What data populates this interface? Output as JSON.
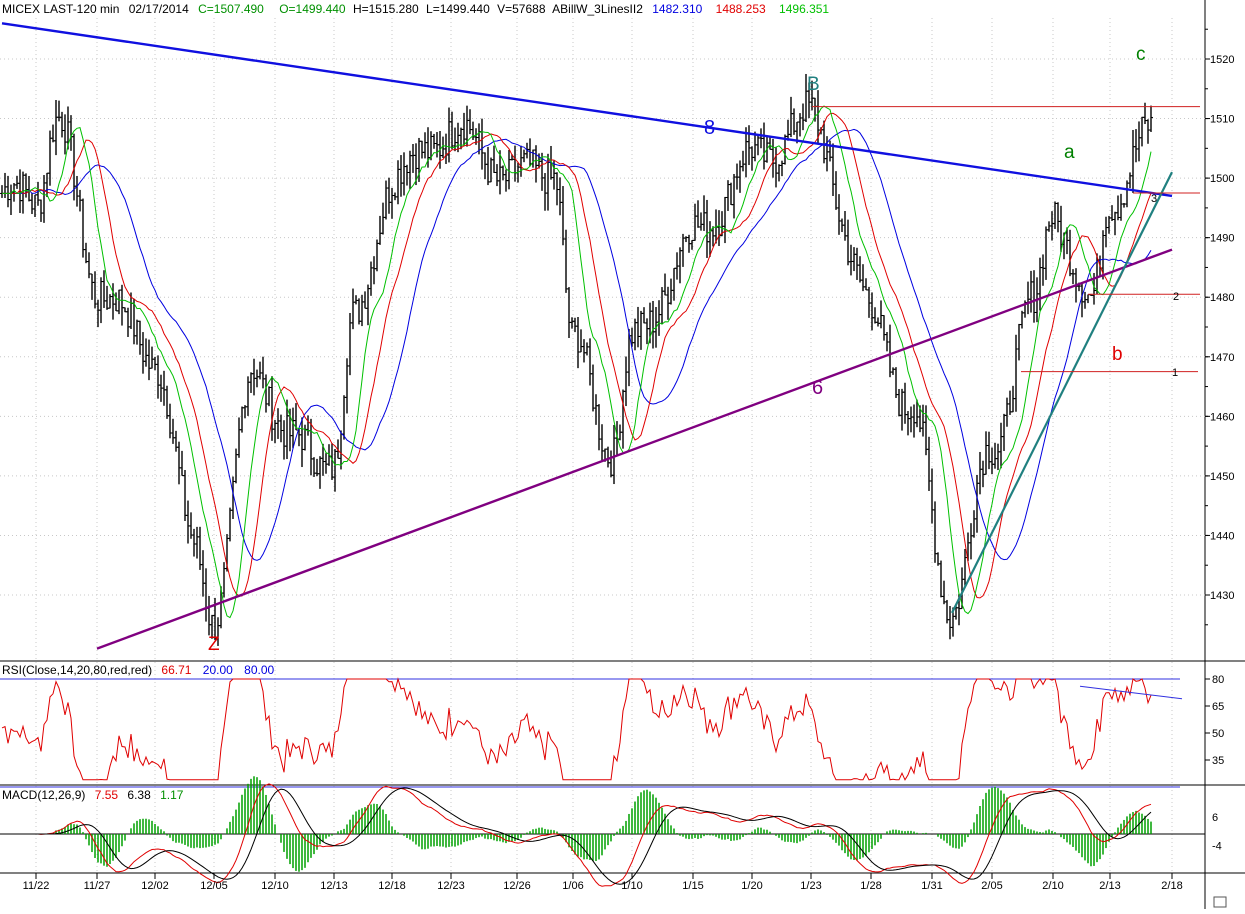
{
  "header": {
    "symbol": "MICEX LAST-120 min",
    "date": "02/17/2014",
    "close": "C=1507.490",
    "open": "O=1499.440",
    "high": "H=1515.280",
    "low": "L=1499.440",
    "volume": "V=57688",
    "indicator": "ABillW_3LinesII2",
    "line1": "1482.310",
    "line2": "1488.253",
    "line3": "1496.351"
  },
  "rsi": {
    "label": "RSI(Close,14,20,80,red,red)",
    "value": "66.71",
    "low": "20.00",
    "high": "80.00",
    "ticks": [
      "80",
      "65",
      "50",
      "35"
    ]
  },
  "macd": {
    "label": "MACD(12,26,9)",
    "macd": "7.55",
    "signal": "6.38",
    "hist": "1.17",
    "ticks": [
      "6",
      "-4"
    ]
  },
  "colors": {
    "up_trend": "#1010e0",
    "support": "#800080",
    "channel": "#208080",
    "rsi_line": "#e00000",
    "ma_fast": "#00c000",
    "ma_mid": "#e00000",
    "ma_slow": "#0000e0",
    "price_bars": "#000000",
    "hist": "#00a000"
  },
  "annotations": {
    "Z": "Z",
    "B": "B",
    "c": "c",
    "a": "a",
    "b": "b",
    "eight": "8",
    "six": "6",
    "lvl1": "1",
    "lvl2": "2",
    "lvl3": "3"
  },
  "chart_data": {
    "type": "line",
    "title": "MICEX LAST-120 min",
    "xlabel": "",
    "ylabel": "",
    "x_ticks": [
      "11/22",
      "11/27",
      "12/02",
      "12/05",
      "12/10",
      "12/13",
      "12/18",
      "12/23",
      "12/26",
      "1/06",
      "1/10",
      "1/15",
      "1/20",
      "1/23",
      "1/28",
      "1/31",
      "2/05",
      "2/10",
      "2/13",
      "2/18"
    ],
    "y_ticks": [
      1430,
      1440,
      1450,
      1460,
      1470,
      1480,
      1490,
      1500,
      1510,
      1520
    ],
    "ylim": [
      1420,
      1530
    ],
    "grid": true,
    "price_points": [
      {
        "t": "11/22",
        "v": 1497
      },
      {
        "t": "11/25",
        "v": 1510
      },
      {
        "t": "11/27",
        "v": 1482
      },
      {
        "t": "12/02",
        "v": 1470
      },
      {
        "t": "12/04",
        "v": 1438
      },
      {
        "t": "12/05",
        "v": 1427
      },
      {
        "t": "12/09",
        "v": 1468
      },
      {
        "t": "12/11",
        "v": 1455
      },
      {
        "t": "12/13",
        "v": 1453
      },
      {
        "t": "12/16",
        "v": 1475
      },
      {
        "t": "12/18",
        "v": 1500
      },
      {
        "t": "12/23",
        "v": 1508
      },
      {
        "t": "12/26",
        "v": 1500
      },
      {
        "t": "12/30",
        "v": 1502
      },
      {
        "t": "1/06",
        "v": 1472
      },
      {
        "t": "1/09",
        "v": 1455
      },
      {
        "t": "1/10",
        "v": 1472
      },
      {
        "t": "1/15",
        "v": 1490
      },
      {
        "t": "1/20",
        "v": 1503
      },
      {
        "t": "1/23",
        "v": 1510
      },
      {
        "t": "1/28",
        "v": 1478
      },
      {
        "t": "1/30",
        "v": 1460
      },
      {
        "t": "2/03",
        "v": 1428
      },
      {
        "t": "2/05",
        "v": 1455
      },
      {
        "t": "2/07",
        "v": 1478
      },
      {
        "t": "2/10",
        "v": 1495
      },
      {
        "t": "2/12",
        "v": 1478
      },
      {
        "t": "2/13",
        "v": 1497
      },
      {
        "t": "2/17",
        "v": 1507
      }
    ],
    "trendlines": [
      {
        "name": "8",
        "from": {
          "t": "11/21",
          "v": 1526
        },
        "to": {
          "t": "2/18",
          "v": 1497
        }
      },
      {
        "name": "6",
        "from": {
          "t": "11/27",
          "v": 1421
        },
        "to": {
          "t": "2/18",
          "v": 1488
        }
      },
      {
        "name": "",
        "from": {
          "t": "2/03",
          "v": 1427
        },
        "to": {
          "t": "2/18",
          "v": 1501
        }
      }
    ],
    "horizontal_levels": [
      {
        "label": "",
        "v": 1512
      },
      {
        "label": "3",
        "v": 1497.5
      },
      {
        "label": "2",
        "v": 1480.5
      },
      {
        "label": "1",
        "v": 1467.5
      }
    ],
    "series_last": {
      "line1": 1482.31,
      "line2": 1488.253,
      "line3": 1496.351
    },
    "rsi_range": [
      20,
      80
    ],
    "rsi_last": 66.71,
    "macd_last": {
      "macd": 7.55,
      "signal": 6.38,
      "hist": 1.17
    }
  }
}
